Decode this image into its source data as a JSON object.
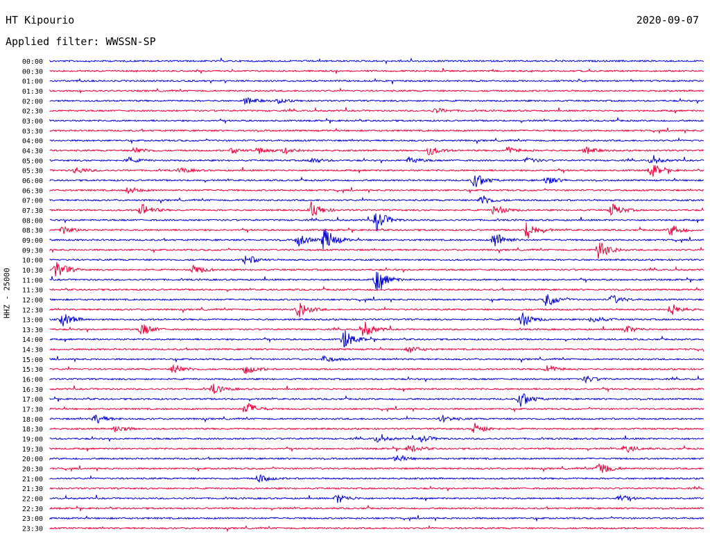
{
  "header": {
    "station": "HT Kipourio",
    "date": "2020-09-07",
    "filter": "Applied filter: WWSSN-SP"
  },
  "chart_data": {
    "type": "line",
    "ylabel": "HHZ - 25000",
    "row_labels": [
      "00:00",
      "00:30",
      "01:00",
      "01:30",
      "02:00",
      "02:30",
      "03:00",
      "03:30",
      "04:00",
      "04:30",
      "05:00",
      "05:30",
      "06:00",
      "06:30",
      "07:00",
      "07:30",
      "08:00",
      "08:30",
      "09:00",
      "09:30",
      "10:00",
      "10:30",
      "11:00",
      "11:30",
      "12:00",
      "12:30",
      "13:00",
      "13:30",
      "14:00",
      "14:30",
      "15:00",
      "15:30",
      "16:00",
      "16:30",
      "17:00",
      "17:30",
      "18:00",
      "18:30",
      "19:00",
      "19:30",
      "20:00",
      "20:30",
      "21:00",
      "21:30",
      "22:00",
      "22:30",
      "23:00",
      "23:30"
    ],
    "series_colors": [
      "#0000d0",
      "#e8003a"
    ],
    "bursts": [
      {
        "row": 4,
        "x": 0.3,
        "amp": 5
      },
      {
        "row": 4,
        "x": 0.35,
        "amp": 3
      },
      {
        "row": 5,
        "x": 0.59,
        "amp": 4
      },
      {
        "row": 9,
        "x": 0.13,
        "amp": 5
      },
      {
        "row": 9,
        "x": 0.28,
        "amp": 4
      },
      {
        "row": 9,
        "x": 0.32,
        "amp": 5
      },
      {
        "row": 9,
        "x": 0.36,
        "amp": 5
      },
      {
        "row": 9,
        "x": 0.58,
        "amp": 7
      },
      {
        "row": 9,
        "x": 0.7,
        "amp": 5
      },
      {
        "row": 9,
        "x": 0.82,
        "amp": 5
      },
      {
        "row": 10,
        "x": 0.12,
        "amp": 4
      },
      {
        "row": 10,
        "x": 0.4,
        "amp": 4
      },
      {
        "row": 10,
        "x": 0.55,
        "amp": 5
      },
      {
        "row": 10,
        "x": 0.73,
        "amp": 4
      },
      {
        "row": 10,
        "x": 0.92,
        "amp": 5
      },
      {
        "row": 11,
        "x": 0.04,
        "amp": 5
      },
      {
        "row": 11,
        "x": 0.2,
        "amp": 4
      },
      {
        "row": 11,
        "x": 0.92,
        "amp": 10
      },
      {
        "row": 12,
        "x": 0.65,
        "amp": 12
      },
      {
        "row": 12,
        "x": 0.76,
        "amp": 6
      },
      {
        "row": 13,
        "x": 0.12,
        "amp": 5
      },
      {
        "row": 14,
        "x": 0.66,
        "amp": 8
      },
      {
        "row": 15,
        "x": 0.14,
        "amp": 10
      },
      {
        "row": 15,
        "x": 0.4,
        "amp": 12
      },
      {
        "row": 15,
        "x": 0.68,
        "amp": 9
      },
      {
        "row": 15,
        "x": 0.86,
        "amp": 10
      },
      {
        "row": 16,
        "x": 0.5,
        "amp": 16
      },
      {
        "row": 17,
        "x": 0.02,
        "amp": 6
      },
      {
        "row": 17,
        "x": 0.73,
        "amp": 14
      },
      {
        "row": 17,
        "x": 0.95,
        "amp": 9
      },
      {
        "row": 18,
        "x": 0.38,
        "amp": 9
      },
      {
        "row": 18,
        "x": 0.42,
        "amp": 20
      },
      {
        "row": 18,
        "x": 0.68,
        "amp": 13
      },
      {
        "row": 19,
        "x": 0.84,
        "amp": 15
      },
      {
        "row": 20,
        "x": 0.3,
        "amp": 8
      },
      {
        "row": 21,
        "x": 0.01,
        "amp": 14
      },
      {
        "row": 21,
        "x": 0.22,
        "amp": 7
      },
      {
        "row": 22,
        "x": 0.5,
        "amp": 18
      },
      {
        "row": 24,
        "x": 0.76,
        "amp": 11
      },
      {
        "row": 24,
        "x": 0.86,
        "amp": 7
      },
      {
        "row": 25,
        "x": 0.38,
        "amp": 13
      },
      {
        "row": 25,
        "x": 0.95,
        "amp": 9
      },
      {
        "row": 26,
        "x": 0.02,
        "amp": 10
      },
      {
        "row": 26,
        "x": 0.72,
        "amp": 13
      },
      {
        "row": 26,
        "x": 0.83,
        "amp": 6
      },
      {
        "row": 27,
        "x": 0.14,
        "amp": 10
      },
      {
        "row": 27,
        "x": 0.48,
        "amp": 12
      },
      {
        "row": 27,
        "x": 0.88,
        "amp": 6
      },
      {
        "row": 28,
        "x": 0.45,
        "amp": 14
      },
      {
        "row": 29,
        "x": 0.55,
        "amp": 5
      },
      {
        "row": 30,
        "x": 0.42,
        "amp": 5
      },
      {
        "row": 31,
        "x": 0.19,
        "amp": 8
      },
      {
        "row": 31,
        "x": 0.3,
        "amp": 7
      },
      {
        "row": 31,
        "x": 0.76,
        "amp": 6
      },
      {
        "row": 32,
        "x": 0.82,
        "amp": 5
      },
      {
        "row": 33,
        "x": 0.25,
        "amp": 7
      },
      {
        "row": 34,
        "x": 0.72,
        "amp": 12
      },
      {
        "row": 35,
        "x": 0.3,
        "amp": 11
      },
      {
        "row": 36,
        "x": 0.07,
        "amp": 7
      },
      {
        "row": 36,
        "x": 0.6,
        "amp": 5
      },
      {
        "row": 37,
        "x": 0.1,
        "amp": 6
      },
      {
        "row": 37,
        "x": 0.65,
        "amp": 9
      },
      {
        "row": 38,
        "x": 0.5,
        "amp": 5
      },
      {
        "row": 38,
        "x": 0.57,
        "amp": 5
      },
      {
        "row": 39,
        "x": 0.55,
        "amp": 6
      },
      {
        "row": 39,
        "x": 0.88,
        "amp": 6
      },
      {
        "row": 40,
        "x": 0.53,
        "amp": 5
      },
      {
        "row": 41,
        "x": 0.84,
        "amp": 12
      },
      {
        "row": 42,
        "x": 0.32,
        "amp": 6
      },
      {
        "row": 44,
        "x": 0.44,
        "amp": 7
      },
      {
        "row": 44,
        "x": 0.87,
        "amp": 5
      }
    ]
  }
}
